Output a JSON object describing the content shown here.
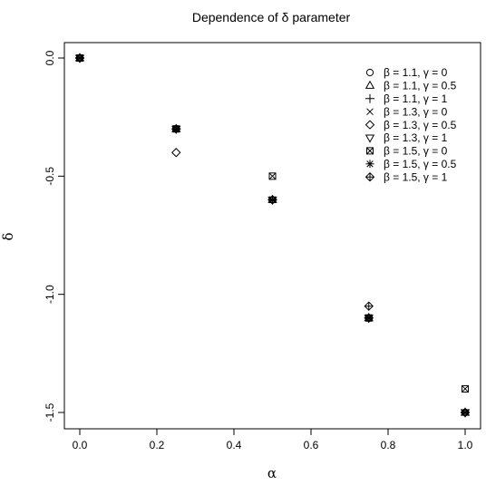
{
  "chart_data": {
    "type": "scatter",
    "title": "Dependence of δ parameter",
    "xlabel": "α",
    "ylabel": "δ",
    "xlim": [
      0,
      1
    ],
    "ylim": [
      -1.5,
      0
    ],
    "x_ticks": [
      "0.0",
      "0.2",
      "0.4",
      "0.6",
      "0.8",
      "1.0"
    ],
    "y_ticks": [
      "0.0",
      "-0.5",
      "-1.0",
      "-1.5"
    ],
    "grid": false,
    "legend_position": "top-right",
    "series": [
      {
        "name": "β = 1.1, γ = 0",
        "marker": "circle",
        "x": [
          0,
          0.25,
          0.5,
          0.75,
          1.0
        ],
        "y": [
          0,
          -0.3,
          -0.6,
          -1.1,
          -1.5
        ]
      },
      {
        "name": "β = 1.1, γ = 0.5",
        "marker": "triangle-up",
        "x": [
          0,
          0.25,
          0.5,
          0.75,
          1.0
        ],
        "y": [
          0,
          -0.3,
          -0.6,
          -1.1,
          -1.5
        ]
      },
      {
        "name": "β = 1.1, γ = 1",
        "marker": "plus",
        "x": [
          0,
          0.25,
          0.5,
          0.75,
          1.0
        ],
        "y": [
          0,
          -0.3,
          -0.6,
          -1.1,
          -1.5
        ]
      },
      {
        "name": "β = 1.3, γ = 0",
        "marker": "cross",
        "x": [
          0,
          0.25,
          0.5,
          0.75,
          1.0
        ],
        "y": [
          0,
          -0.3,
          -0.6,
          -1.1,
          -1.5
        ]
      },
      {
        "name": "β = 1.3, γ = 0.5",
        "marker": "diamond",
        "x": [
          0,
          0.25,
          0.5,
          0.75,
          1.0
        ],
        "y": [
          0,
          -0.4,
          -0.6,
          -1.1,
          -1.5
        ]
      },
      {
        "name": "β = 1.3, γ = 1",
        "marker": "triangle-down",
        "x": [
          0,
          0.25,
          0.5,
          0.75,
          1.0
        ],
        "y": [
          0,
          -0.3,
          -0.6,
          -1.1,
          -1.5
        ]
      },
      {
        "name": "β = 1.5, γ = 0",
        "marker": "square-cross",
        "x": [
          0,
          0.25,
          0.5,
          0.75,
          1.0
        ],
        "y": [
          0,
          -0.3,
          -0.5,
          -1.1,
          -1.4
        ]
      },
      {
        "name": "β = 1.5, γ = 0.5",
        "marker": "asterisk",
        "x": [
          0,
          0.25,
          0.5,
          0.75,
          1.0
        ],
        "y": [
          0,
          -0.3,
          -0.6,
          -1.1,
          -1.5
        ]
      },
      {
        "name": "β = 1.5, γ = 1",
        "marker": "diamond-plus",
        "x": [
          0,
          0.25,
          0.5,
          0.75,
          1.0
        ],
        "y": [
          0,
          -0.3,
          -0.6,
          -1.05,
          -1.5
        ]
      }
    ]
  }
}
